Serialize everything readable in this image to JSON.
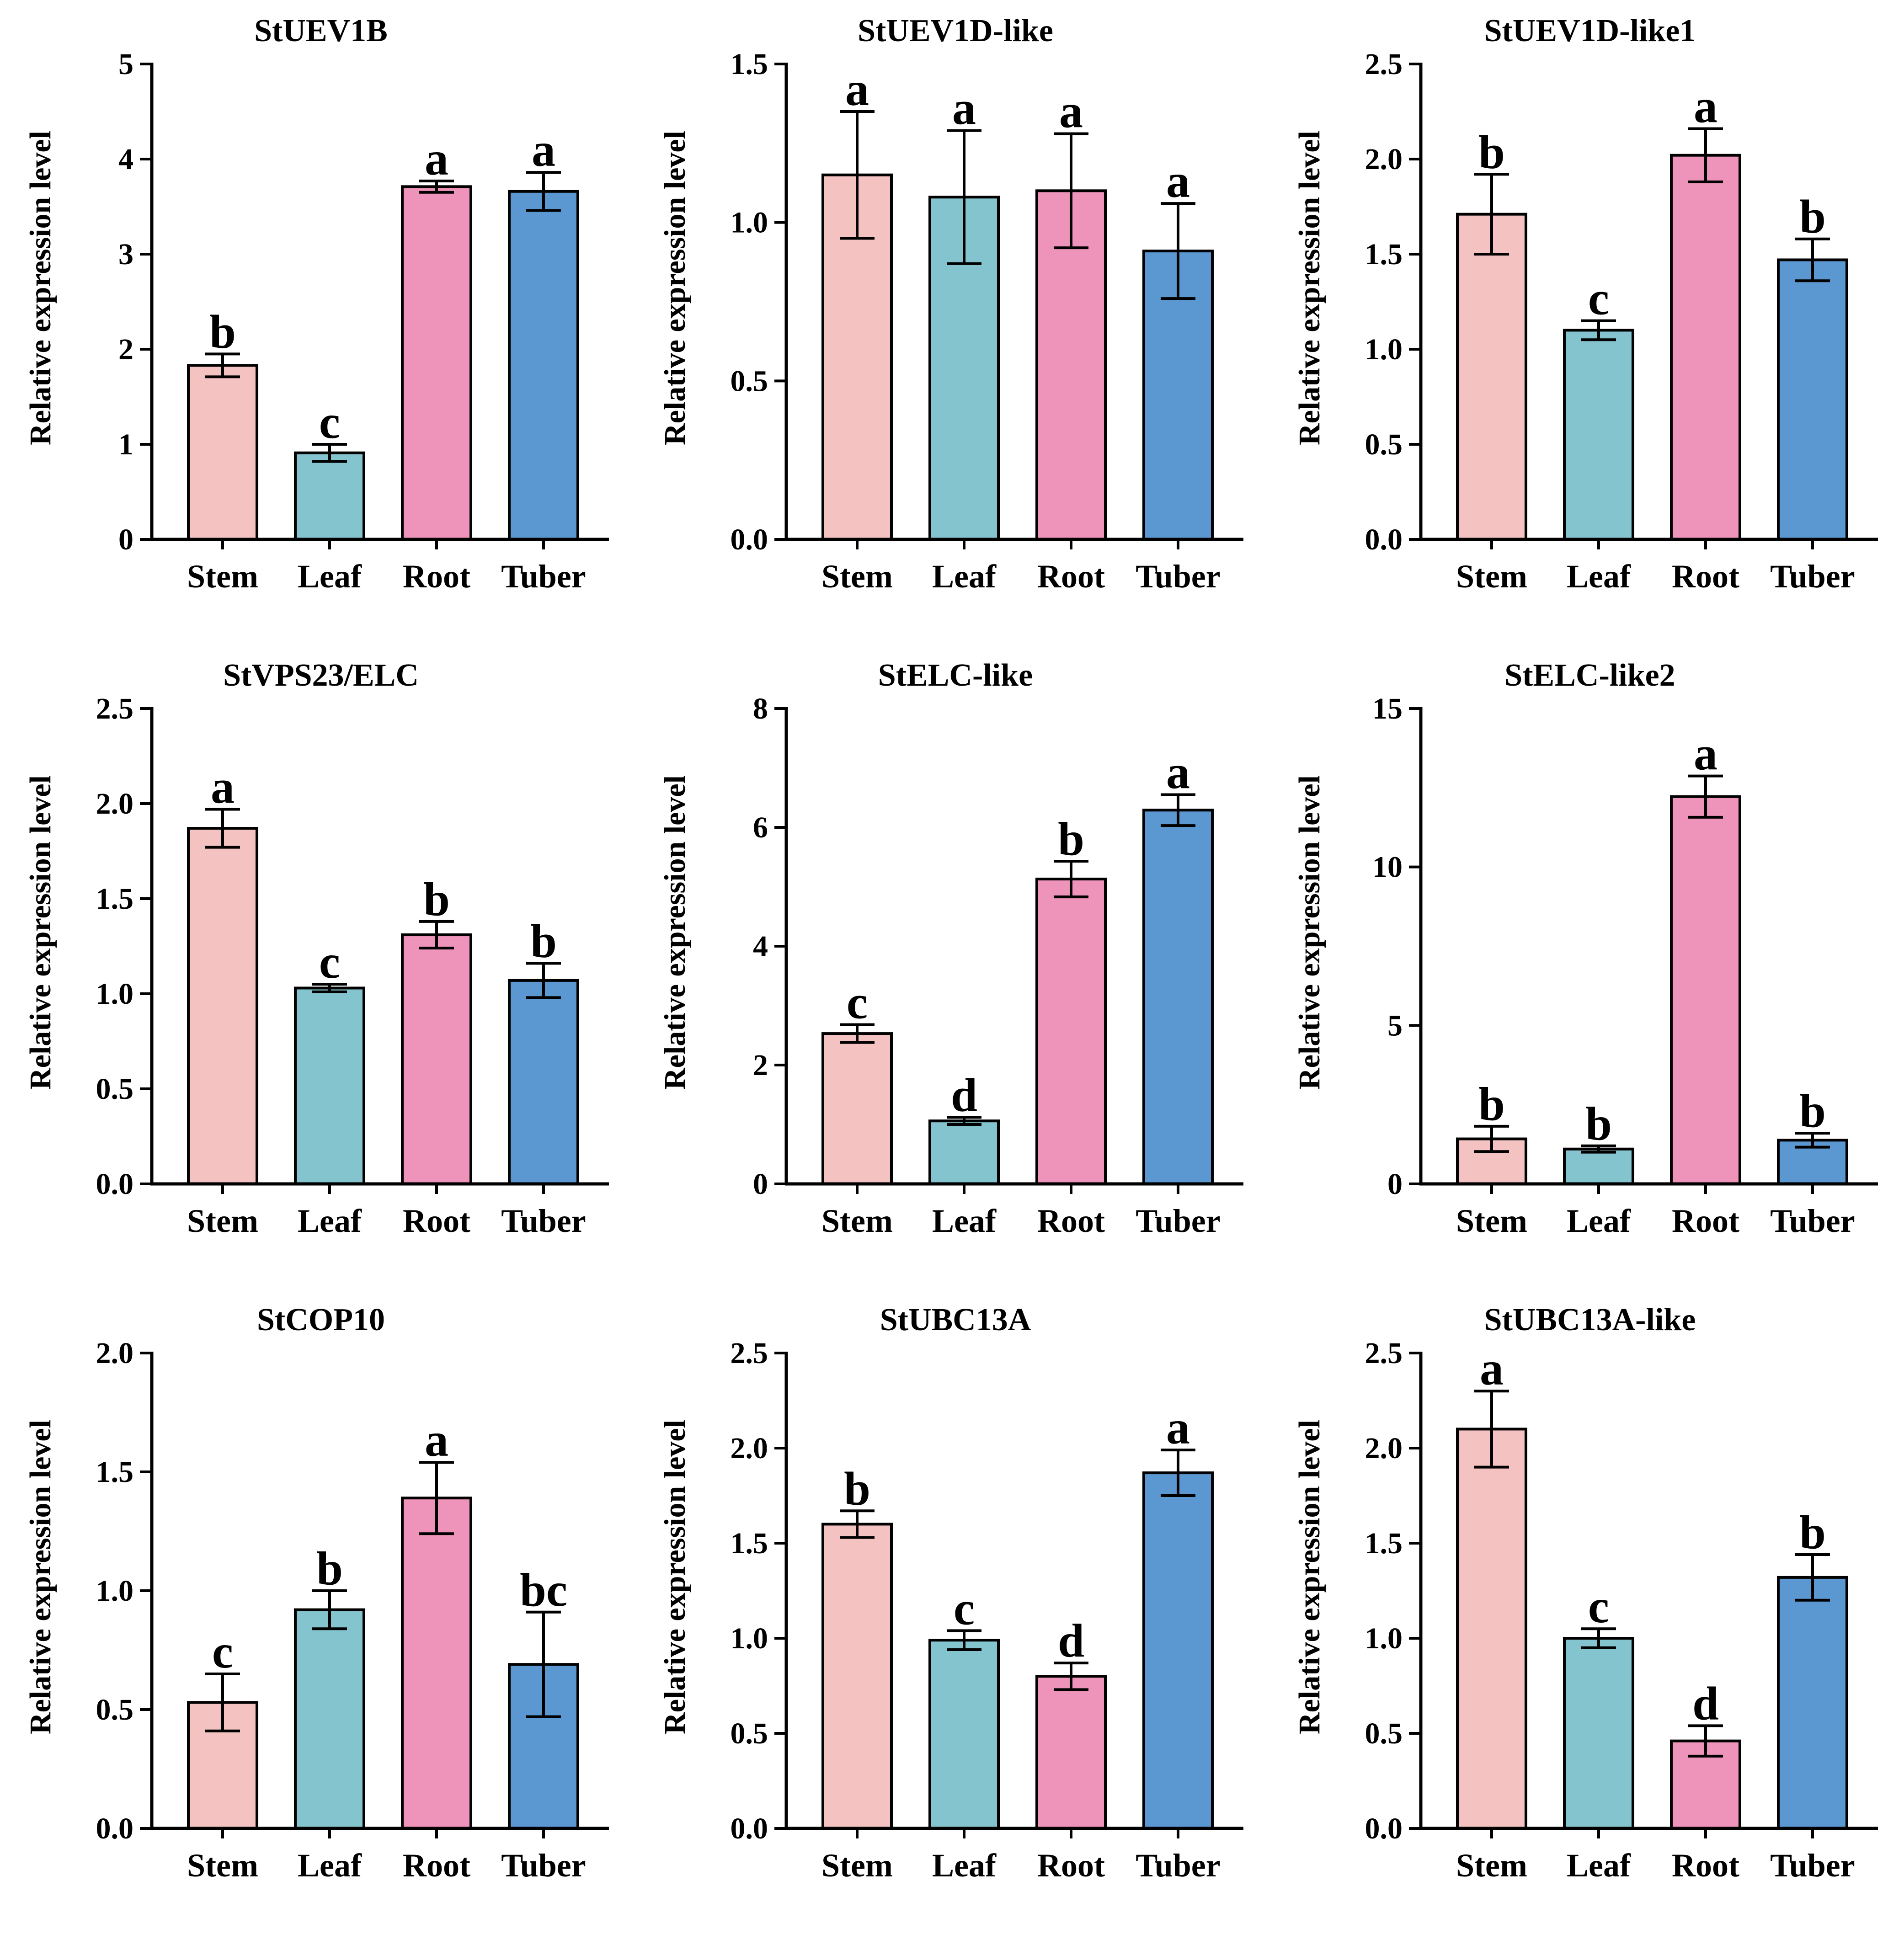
{
  "figure": {
    "categories": [
      "Stem",
      "Leaf",
      "Root",
      "Tuber"
    ],
    "colors": [
      "#f5c2c2",
      "#84c4ce",
      "#ee94bb",
      "#5b97d1"
    ]
  },
  "chart_data": [
    {
      "type": "bar",
      "title": "StUEV1B",
      "ylabel": "Relative expression level",
      "categories": [
        "Stem",
        "Leaf",
        "Root",
        "Tuber"
      ],
      "values": [
        1.83,
        0.91,
        3.71,
        3.66
      ],
      "errors": [
        0.12,
        0.09,
        0.06,
        0.2
      ],
      "significance": [
        "b",
        "c",
        "a",
        "a"
      ],
      "ylim": [
        0,
        5
      ],
      "yticks": [
        "0",
        "1",
        "2",
        "3",
        "4",
        "5"
      ]
    },
    {
      "type": "bar",
      "title": "StUEV1D-like",
      "ylabel": "Relative expression level",
      "categories": [
        "Stem",
        "Leaf",
        "Root",
        "Tuber"
      ],
      "values": [
        1.15,
        1.08,
        1.1,
        0.91
      ],
      "errors": [
        0.2,
        0.21,
        0.18,
        0.15
      ],
      "significance": [
        "a",
        "a",
        "a",
        "a"
      ],
      "ylim": [
        0,
        1.5
      ],
      "yticks": [
        "0.0",
        "0.5",
        "1.0",
        "1.5"
      ]
    },
    {
      "type": "bar",
      "title": "StUEV1D-like1",
      "ylabel": "Relative expression level",
      "categories": [
        "Stem",
        "Leaf",
        "Root",
        "Tuber"
      ],
      "values": [
        1.71,
        1.1,
        2.02,
        1.47
      ],
      "errors": [
        0.21,
        0.05,
        0.14,
        0.11
      ],
      "significance": [
        "b",
        "c",
        "a",
        "b"
      ],
      "ylim": [
        0,
        2.5
      ],
      "yticks": [
        "0.0",
        "0.5",
        "1.0",
        "1.5",
        "2.0",
        "2.5"
      ]
    },
    {
      "type": "bar",
      "title": "StVPS23/ELC",
      "ylabel": "Relative expression level",
      "categories": [
        "Stem",
        "Leaf",
        "Root",
        "Tuber"
      ],
      "values": [
        1.87,
        1.03,
        1.31,
        1.07
      ],
      "errors": [
        0.1,
        0.02,
        0.07,
        0.09
      ],
      "significance": [
        "a",
        "c",
        "b",
        "b"
      ],
      "ylim": [
        0,
        2.5
      ],
      "yticks": [
        "0.0",
        "0.5",
        "1.0",
        "1.5",
        "2.0",
        "2.5"
      ]
    },
    {
      "type": "bar",
      "title": "StELC-like",
      "ylabel": "Relative expression level",
      "categories": [
        "Stem",
        "Leaf",
        "Root",
        "Tuber"
      ],
      "values": [
        2.53,
        1.06,
        5.13,
        6.29
      ],
      "errors": [
        0.15,
        0.06,
        0.3,
        0.26
      ],
      "significance": [
        "c",
        "d",
        "b",
        "a"
      ],
      "ylim": [
        0,
        8
      ],
      "yticks": [
        "0",
        "2",
        "4",
        "6",
        "8"
      ]
    },
    {
      "type": "bar",
      "title": "StELC-like2",
      "ylabel": "Relative expression level",
      "categories": [
        "Stem",
        "Leaf",
        "Root",
        "Tuber"
      ],
      "values": [
        1.42,
        1.1,
        12.22,
        1.38
      ],
      "errors": [
        0.4,
        0.1,
        0.65,
        0.22
      ],
      "significance": [
        "b",
        "b",
        "a",
        "b"
      ],
      "ylim": [
        0,
        15
      ],
      "yticks": [
        "0",
        "5",
        "10",
        "15"
      ]
    },
    {
      "type": "bar",
      "title": "StCOP10",
      "ylabel": "Relative expression level",
      "categories": [
        "Stem",
        "Leaf",
        "Root",
        "Tuber"
      ],
      "values": [
        0.53,
        0.92,
        1.39,
        0.69
      ],
      "errors": [
        0.12,
        0.08,
        0.15,
        0.22
      ],
      "significance": [
        "c",
        "b",
        "a",
        "bc"
      ],
      "ylim": [
        0,
        2.0
      ],
      "yticks": [
        "0.0",
        "0.5",
        "1.0",
        "1.5",
        "2.0"
      ]
    },
    {
      "type": "bar",
      "title": "StUBC13A",
      "ylabel": "Relative expression level",
      "categories": [
        "Stem",
        "Leaf",
        "Root",
        "Tuber"
      ],
      "values": [
        1.6,
        0.99,
        0.8,
        1.87
      ],
      "errors": [
        0.07,
        0.05,
        0.07,
        0.12
      ],
      "significance": [
        "b",
        "c",
        "d",
        "a"
      ],
      "ylim": [
        0,
        2.5
      ],
      "yticks": [
        "0.0",
        "0.5",
        "1.0",
        "1.5",
        "2.0",
        "2.5"
      ]
    },
    {
      "type": "bar",
      "title": "StUBC13A-like",
      "ylabel": "Relative expression level",
      "categories": [
        "Stem",
        "Leaf",
        "Root",
        "Tuber"
      ],
      "values": [
        2.1,
        1.0,
        0.46,
        1.32
      ],
      "errors": [
        0.2,
        0.05,
        0.08,
        0.12
      ],
      "significance": [
        "a",
        "c",
        "d",
        "b"
      ],
      "ylim": [
        0,
        2.5
      ],
      "yticks": [
        "0.0",
        "0.5",
        "1.0",
        "1.5",
        "2.0",
        "2.5"
      ]
    }
  ]
}
